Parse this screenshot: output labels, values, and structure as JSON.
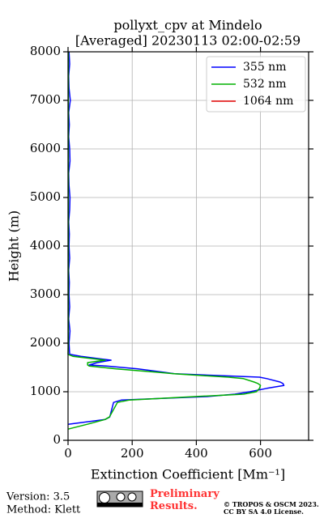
{
  "chart_data": {
    "type": "line",
    "title": "pollyxt_cpv at Mindelo",
    "subtitle": "[Averaged] 20230113 02:00-02:59",
    "x_label": "Extinction Coefficient [Mm⁻¹]",
    "y_label": "Height (m)",
    "y": [
      230,
      330,
      430,
      480,
      780,
      830,
      900,
      950,
      1000,
      1070,
      1130,
      1170,
      1200,
      1270,
      1300,
      1370,
      1400,
      1470,
      1530,
      1550,
      1600,
      1650,
      1730,
      1770,
      2000,
      2250,
      2500,
      2750,
      3000,
      3250,
      3500,
      3750,
      4000,
      4250,
      4500,
      4750,
      5000,
      5250,
      5500,
      5750,
      6000,
      6250,
      6500,
      6750,
      7000,
      7250,
      7500,
      7750,
      8000
    ],
    "series": [
      {
        "name": "355 nm",
        "color": "#0000ff",
        "values": [
          null,
          0,
          116,
          130,
          142,
          167,
          433,
          520,
          567,
          620,
          673,
          670,
          661,
          620,
          597,
          332,
          300,
          218,
          120,
          66,
          91,
          134,
          40,
          5,
          3,
          6,
          2,
          5,
          3,
          4,
          2,
          5,
          3,
          4,
          2,
          5,
          6,
          3,
          2,
          6,
          5,
          2,
          4,
          2,
          7,
          3,
          2,
          5,
          3
        ]
      },
      {
        "name": "532 nm",
        "color": "#00b000",
        "values": [
          0,
          60,
          116,
          129,
          154,
          192,
          395,
          547,
          587,
          597,
          600,
          592,
          580,
          547,
          500,
          330,
          281,
          150,
          66,
          61,
          61,
          116,
          15,
          0,
          1,
          1,
          1,
          1,
          1,
          1,
          1,
          1,
          1,
          1,
          1,
          1,
          1,
          1,
          1,
          1,
          1,
          1,
          1,
          1,
          1,
          1,
          1,
          1,
          1
        ]
      },
      {
        "name": "1064 nm",
        "color": "#e00000",
        "values": [
          null,
          null,
          null,
          null,
          null,
          null,
          null,
          null,
          null,
          null,
          null,
          null,
          null,
          null,
          null,
          null,
          null,
          null,
          null,
          null,
          null,
          null,
          null,
          null,
          null,
          null,
          null,
          null,
          null,
          null,
          null,
          null,
          null,
          null,
          null,
          null,
          null,
          null,
          null,
          null,
          null,
          null,
          null,
          null,
          null,
          null,
          null,
          null,
          null
        ]
      }
    ],
    "xlim": [
      0,
      750
    ],
    "xticks": [
      0,
      200,
      400,
      600
    ],
    "ylim": [
      0,
      8000
    ],
    "yticks": [
      0,
      1000,
      2000,
      3000,
      4000,
      5000,
      6000,
      7000,
      8000
    ],
    "grid": true,
    "legend": "upper right"
  },
  "footer": {
    "version": "Version: 3.5",
    "method": "Method: Klett",
    "status": "Preliminary Results.",
    "copyright": "© TROPOS & OSCM 2023.",
    "license": "CC BY SA 4.0 License."
  }
}
